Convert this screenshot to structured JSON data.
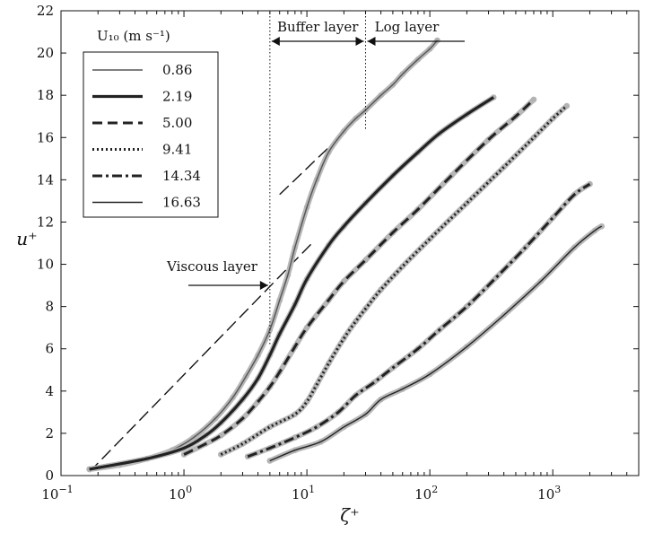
{
  "chart_data": {
    "type": "line",
    "xscale": "log",
    "xlim": [
      0.1,
      5000
    ],
    "ylim": [
      0,
      22
    ],
    "x_ticks": [
      {
        "v": 0.1,
        "base": "10",
        "exp": "−1"
      },
      {
        "v": 1,
        "base": "10",
        "exp": "0"
      },
      {
        "v": 10,
        "base": "10",
        "exp": "1"
      },
      {
        "v": 100,
        "base": "10",
        "exp": "2"
      },
      {
        "v": 1000,
        "base": "10",
        "exp": "3"
      }
    ],
    "y_ticks": [
      "0",
      "2",
      "4",
      "6",
      "8",
      "10",
      "12",
      "14",
      "16",
      "18",
      "20",
      "22"
    ],
    "xlabel": "ζ⁺",
    "ylabel": "u⁺",
    "legend": {
      "title": "U₁₀ (m s⁻¹)",
      "position": "top-left",
      "entries": [
        "0.86",
        "2.19",
        "5.00",
        "9.41",
        "14.34",
        "16.63"
      ]
    },
    "series": [
      {
        "name": "0.86",
        "style": "solid-thin",
        "color": "#555555",
        "x": [
          0.17,
          0.3,
          0.5,
          0.8,
          1.2,
          1.8,
          2.5,
          3.2,
          4.0,
          5.0,
          6.0,
          7.0,
          8.0,
          10,
          12,
          15,
          20,
          25,
          30,
          40,
          50,
          60,
          80,
          100,
          115
        ],
        "y": [
          0.3,
          0.5,
          0.8,
          1.2,
          1.8,
          2.7,
          3.7,
          4.7,
          5.7,
          6.9,
          8.3,
          9.5,
          10.8,
          12.7,
          14.0,
          15.3,
          16.3,
          16.9,
          17.3,
          18.0,
          18.5,
          19.0,
          19.7,
          20.2,
          20.6
        ]
      },
      {
        "name": "2.19",
        "style": "solid-thick",
        "color": "#222222",
        "x": [
          0.17,
          0.5,
          1.0,
          1.5,
          2.0,
          3.0,
          4.0,
          5.0,
          6.0,
          8.0,
          10,
          15,
          20,
          30,
          50,
          80,
          120,
          200,
          330
        ],
        "y": [
          0.3,
          0.8,
          1.3,
          1.9,
          2.5,
          3.6,
          4.6,
          5.7,
          6.7,
          8.1,
          9.3,
          10.9,
          11.8,
          12.9,
          14.2,
          15.3,
          16.2,
          17.1,
          17.9
        ]
      },
      {
        "name": "5.00",
        "style": "dashed",
        "color": "#222222",
        "x": [
          1.0,
          1.5,
          2.0,
          3.0,
          4.0,
          5.0,
          6.0,
          8.0,
          10,
          15,
          20,
          30,
          50,
          80,
          150,
          300,
          500,
          700
        ],
        "y": [
          1.0,
          1.5,
          1.9,
          2.7,
          3.5,
          4.2,
          4.9,
          6.1,
          7.0,
          8.3,
          9.2,
          10.2,
          11.5,
          12.6,
          14.2,
          15.9,
          17.0,
          17.8
        ]
      },
      {
        "name": "9.41",
        "style": "dotted",
        "color": "#222222",
        "x": [
          2.0,
          3.0,
          5.0,
          8.0,
          10,
          12,
          15,
          20,
          25,
          30,
          40,
          60,
          100,
          200,
          400,
          700,
          1000,
          1300
        ],
        "y": [
          1.0,
          1.5,
          2.3,
          2.9,
          3.5,
          4.3,
          5.3,
          6.5,
          7.3,
          7.9,
          8.8,
          9.9,
          11.2,
          12.9,
          14.6,
          16.0,
          16.9,
          17.5
        ]
      },
      {
        "name": "14.34",
        "style": "dash-dot",
        "color": "#222222",
        "x": [
          3.3,
          5.0,
          8.0,
          12,
          18,
          25,
          35,
          50,
          80,
          120,
          200,
          350,
          600,
          1000,
          1500,
          2000
        ],
        "y": [
          0.9,
          1.3,
          1.8,
          2.3,
          3.0,
          3.8,
          4.4,
          5.1,
          6.0,
          6.9,
          8.0,
          9.4,
          10.8,
          12.2,
          13.3,
          13.8
        ]
      },
      {
        "name": "16.63",
        "style": "solid-thin",
        "color": "#222222",
        "x": [
          5.0,
          8.0,
          13,
          20,
          30,
          40,
          60,
          100,
          200,
          400,
          800,
          1500,
          2200,
          2500
        ],
        "y": [
          0.7,
          1.2,
          1.6,
          2.3,
          2.9,
          3.6,
          4.1,
          4.8,
          6.1,
          7.6,
          9.2,
          10.8,
          11.6,
          11.8
        ]
      }
    ],
    "reference_lines": [
      {
        "label": "viscous-fit",
        "style": "long-dash",
        "x": [
          0.17,
          11
        ],
        "y": [
          0.17,
          11
        ]
      },
      {
        "label": "log-fit",
        "style": "long-dash",
        "x": [
          6,
          40,
          115
        ],
        "y": [
          13.3,
          17.9,
          20.6
        ]
      }
    ],
    "annotations": {
      "buffer_label": "Buffer layer",
      "log_label": "Log layer",
      "viscous_label": "Viscous layer",
      "buffer_bounds_x": [
        5,
        30
      ]
    }
  }
}
